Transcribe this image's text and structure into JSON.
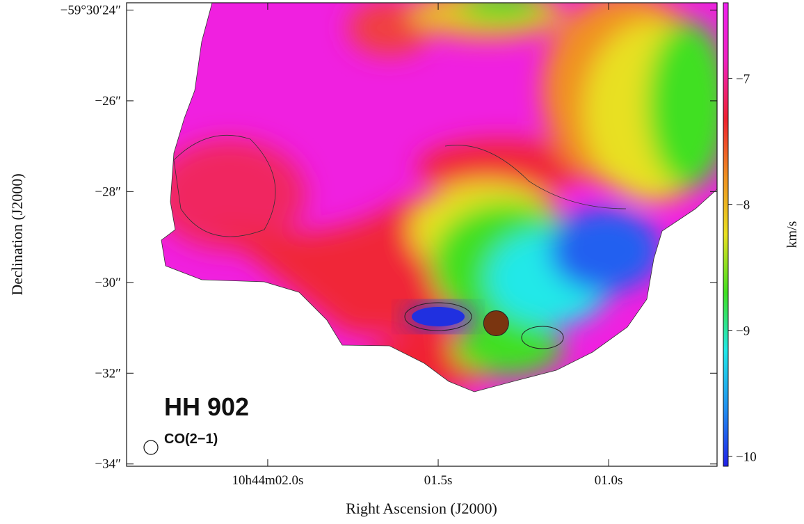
{
  "chart_data": {
    "type": "image",
    "xlabel": "Right Ascension (J2000)",
    "ylabel": "Declination (J2000)",
    "annotations": [
      "HH 902",
      "CO(2−1)"
    ],
    "xlim": [
      2.414,
      0.682
    ],
    "xticks": [
      {
        "value": 2.0,
        "label": "10h44m02.0s"
      },
      {
        "value": 1.5,
        "label": "01.5s"
      },
      {
        "value": 1.0,
        "label": "01.0s"
      }
    ],
    "ylim": [
      -34.05,
      -23.84
    ],
    "yticks": [
      {
        "value": -24,
        "label": "−59°30′24″"
      },
      {
        "value": -26,
        "label": "−26″"
      },
      {
        "value": -28,
        "label": "−28″"
      },
      {
        "value": -30,
        "label": "−30″"
      },
      {
        "value": -32,
        "label": "−32″"
      },
      {
        "value": -34,
        "label": "−34″"
      }
    ],
    "colorbar_label": "km/s",
    "clim": [
      -10.08,
      -6.4
    ],
    "cticks": [
      {
        "value": -7,
        "label": "−7"
      },
      {
        "value": -8,
        "label": "−8"
      },
      {
        "value": -9,
        "label": "−9"
      },
      {
        "value": -10,
        "label": "−10"
      }
    ],
    "colormap": [
      "#2020e8",
      "#2090f0",
      "#20e8e8",
      "#40e020",
      "#e8e020",
      "#f09020",
      "#f02030",
      "#f020c0",
      "#f020f0"
    ],
    "source": {
      "x": 1.33,
      "y": -30.9
    }
  }
}
